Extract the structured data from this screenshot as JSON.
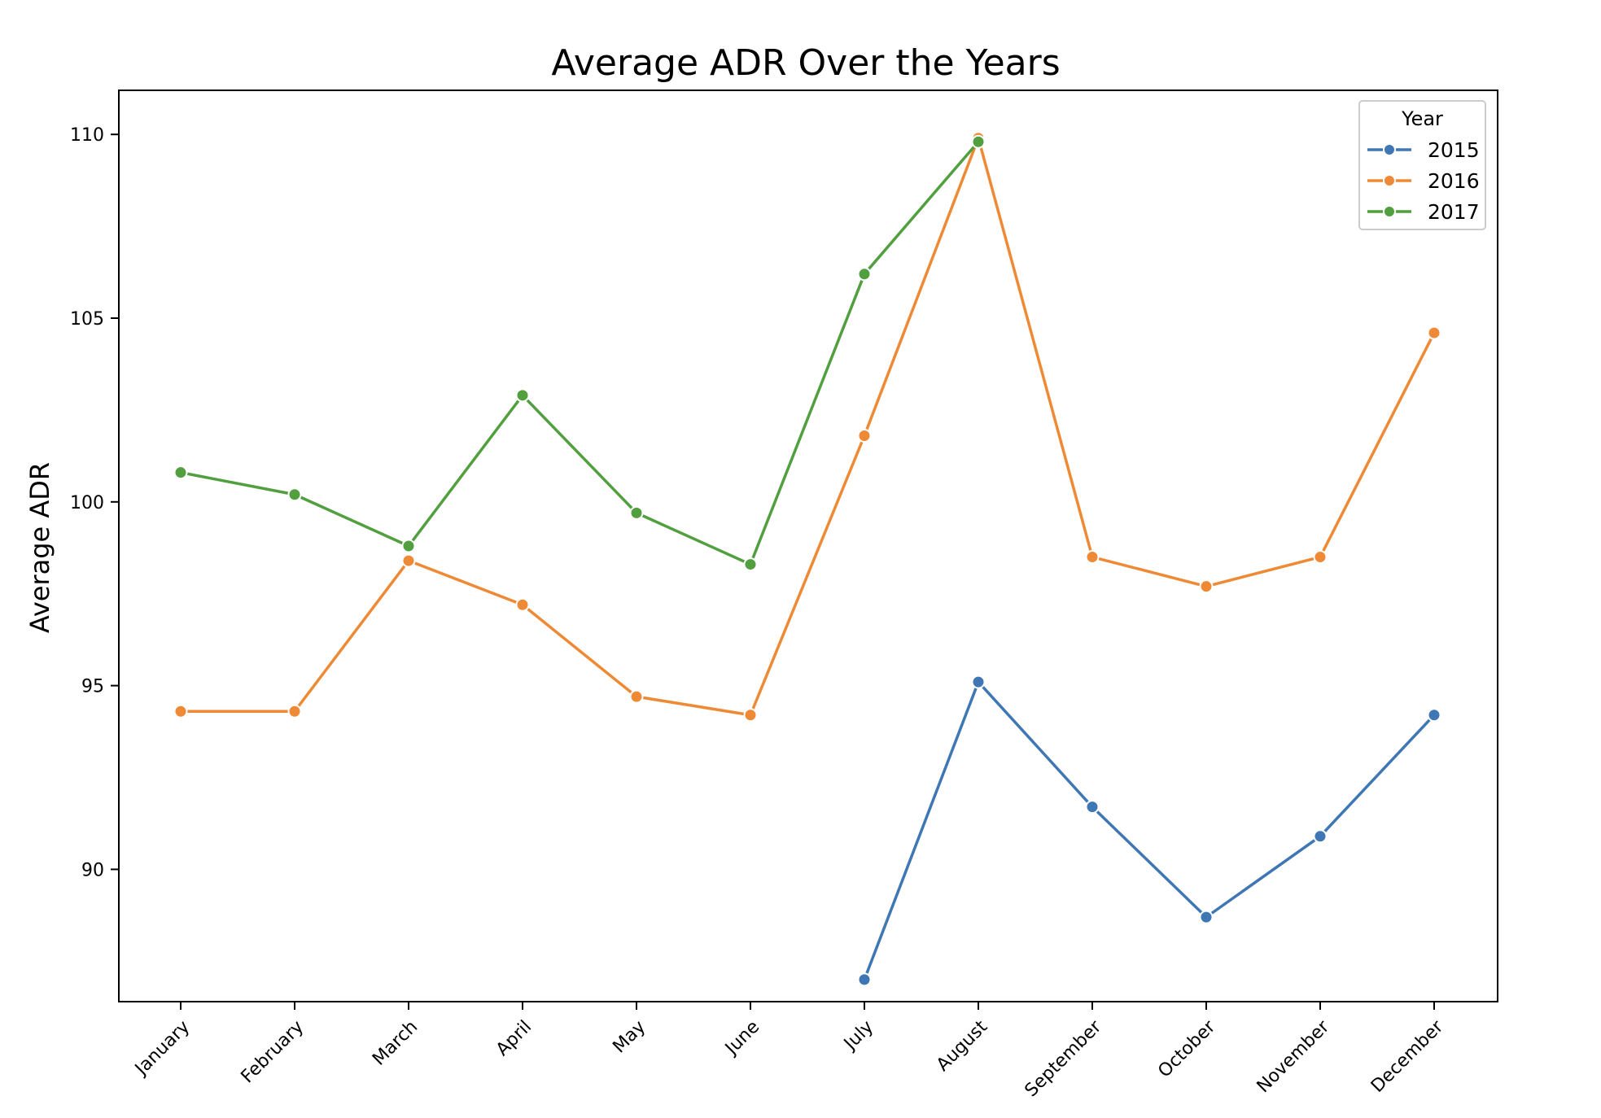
{
  "chart_data": {
    "type": "line",
    "title": "Average ADR Over the Years",
    "xlabel": "",
    "ylabel": "Average ADR",
    "categories": [
      "January",
      "February",
      "March",
      "April",
      "May",
      "June",
      "July",
      "August",
      "September",
      "October",
      "November",
      "December"
    ],
    "ylim": [
      86.4,
      111.2
    ],
    "yticks": [
      90,
      95,
      100,
      105,
      110
    ],
    "grid": false,
    "legend": {
      "title": "Year",
      "position": "top-right"
    },
    "series": [
      {
        "name": "2015",
        "color": "#3f77b4",
        "values": [
          null,
          null,
          null,
          null,
          null,
          null,
          87.0,
          95.1,
          91.7,
          88.7,
          90.9,
          94.2
        ]
      },
      {
        "name": "2016",
        "color": "#ee8a35",
        "values": [
          94.3,
          94.3,
          98.4,
          97.2,
          94.7,
          94.2,
          101.8,
          109.9,
          98.5,
          97.7,
          98.5,
          104.6
        ]
      },
      {
        "name": "2017",
        "color": "#519f3f",
        "values": [
          100.8,
          100.2,
          98.8,
          102.9,
          99.7,
          98.3,
          106.2,
          109.8,
          null,
          null,
          null,
          null
        ]
      }
    ]
  }
}
